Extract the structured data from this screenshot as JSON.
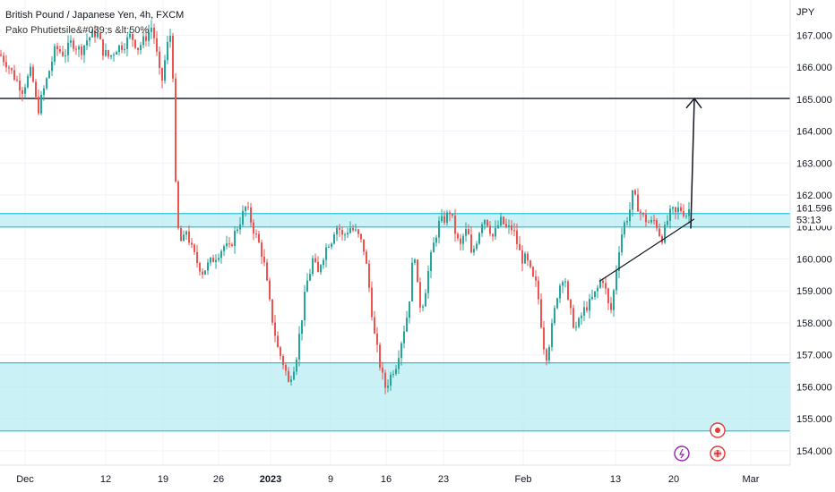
{
  "header": {
    "title": "British Pound / Japanese Yen, 4h, FXCM",
    "indicator": "Pako Phutietsile&#039;s &lt;50%"
  },
  "chart_data": {
    "type": "candlestick",
    "currency_label": "JPY",
    "y_ticks": [
      "167.000",
      "166.000",
      "165.000",
      "164.000",
      "163.000",
      "162.000",
      "161.000",
      "160.000",
      "159.000",
      "158.000",
      "157.000",
      "156.000",
      "155.000",
      "154.000"
    ],
    "y_tick_values": [
      167,
      166,
      165,
      164,
      163,
      162,
      161,
      160,
      159,
      158,
      157,
      156,
      155,
      154
    ],
    "ylim": [
      153.55,
      168.1
    ],
    "x_ticks": [
      {
        "label": "Dec",
        "bold": false
      },
      {
        "label": "12",
        "bold": false
      },
      {
        "label": "19",
        "bold": false
      },
      {
        "label": "26",
        "bold": false
      },
      {
        "label": "2023",
        "bold": true
      },
      {
        "label": "9",
        "bold": false
      },
      {
        "label": "16",
        "bold": false
      },
      {
        "label": "23",
        "bold": false
      },
      {
        "label": "Feb",
        "bold": false
      },
      {
        "label": "13",
        "bold": false
      },
      {
        "label": "20",
        "bold": false
      },
      {
        "label": "Mar",
        "bold": false
      }
    ],
    "last_price": "161.596",
    "countdown": "53:13",
    "target_level": 165.02,
    "resistance_zone": [
      161.0,
      161.42
    ],
    "demand_zone": [
      154.62,
      156.75
    ],
    "path_points": [
      [
        0,
        166.4
      ],
      [
        8,
        166.1
      ],
      [
        18,
        165.6
      ],
      [
        25,
        165.3
      ],
      [
        35,
        165.9
      ],
      [
        42,
        164.6
      ],
      [
        48,
        165.2
      ],
      [
        56,
        166.0
      ],
      [
        62,
        166.6
      ],
      [
        72,
        166.4
      ],
      [
        80,
        166.8
      ],
      [
        90,
        166.5
      ],
      [
        98,
        166.9
      ],
      [
        108,
        167.1
      ],
      [
        115,
        166.5
      ],
      [
        122,
        166.3
      ],
      [
        130,
        166.6
      ],
      [
        138,
        166.7
      ],
      [
        146,
        167.0
      ],
      [
        154,
        166.6
      ],
      [
        162,
        166.9
      ],
      [
        170,
        167.3
      ],
      [
        176,
        166.2
      ],
      [
        180,
        165.4
      ],
      [
        186,
        166.6
      ],
      [
        190,
        167.0
      ],
      [
        193,
        165.8
      ],
      [
        195,
        163.0
      ],
      [
        197,
        161.5
      ],
      [
        200,
        160.6
      ],
      [
        204,
        160.5
      ],
      [
        208,
        160.9
      ],
      [
        214,
        160.3
      ],
      [
        220,
        159.9
      ],
      [
        226,
        159.6
      ],
      [
        232,
        159.8
      ],
      [
        238,
        160.0
      ],
      [
        244,
        160.2
      ],
      [
        250,
        160.4
      ],
      [
        256,
        160.3
      ],
      [
        262,
        160.8
      ],
      [
        268,
        161.2
      ],
      [
        274,
        161.6
      ],
      [
        278,
        161.4
      ],
      [
        282,
        161.0
      ],
      [
        286,
        160.7
      ],
      [
        290,
        160.4
      ],
      [
        294,
        160.0
      ],
      [
        298,
        159.2
      ],
      [
        302,
        158.4
      ],
      [
        306,
        157.8
      ],
      [
        310,
        157.2
      ],
      [
        314,
        156.9
      ],
      [
        318,
        156.6
      ],
      [
        322,
        156.1
      ],
      [
        326,
        156.5
      ],
      [
        330,
        156.8
      ],
      [
        334,
        157.6
      ],
      [
        338,
        158.4
      ],
      [
        342,
        159.2
      ],
      [
        346,
        159.6
      ],
      [
        350,
        160.1
      ],
      [
        354,
        159.4
      ],
      [
        358,
        159.9
      ],
      [
        362,
        160.2
      ],
      [
        366,
        160.5
      ],
      [
        370,
        160.6
      ],
      [
        374,
        161.0
      ],
      [
        378,
        161.0
      ],
      [
        382,
        160.7
      ],
      [
        386,
        160.8
      ],
      [
        390,
        161.0
      ],
      [
        394,
        160.9
      ],
      [
        398,
        160.8
      ],
      [
        402,
        160.6
      ],
      [
        406,
        160.3
      ],
      [
        410,
        159.6
      ],
      [
        414,
        158.6
      ],
      [
        418,
        157.6
      ],
      [
        422,
        157.0
      ],
      [
        426,
        156.4
      ],
      [
        430,
        156.0
      ],
      [
        434,
        156.2
      ],
      [
        438,
        156.5
      ],
      [
        442,
        156.7
      ],
      [
        446,
        157.2
      ],
      [
        450,
        157.7
      ],
      [
        454,
        158.2
      ],
      [
        458,
        159.0
      ],
      [
        462,
        160.5
      ],
      [
        466,
        159.1
      ],
      [
        470,
        158.4
      ],
      [
        474,
        158.9
      ],
      [
        478,
        159.6
      ],
      [
        482,
        160.2
      ],
      [
        486,
        160.7
      ],
      [
        490,
        161.1
      ],
      [
        494,
        161.2
      ],
      [
        498,
        161.3
      ],
      [
        502,
        161.5
      ],
      [
        506,
        161.1
      ],
      [
        510,
        160.6
      ],
      [
        514,
        160.4
      ],
      [
        518,
        160.8
      ],
      [
        522,
        160.9
      ],
      [
        526,
        160.1
      ],
      [
        530,
        160.4
      ],
      [
        534,
        160.8
      ],
      [
        538,
        161.2
      ],
      [
        542,
        161.3
      ],
      [
        546,
        161.0
      ],
      [
        550,
        160.7
      ],
      [
        554,
        160.9
      ],
      [
        558,
        161.2
      ],
      [
        562,
        161.1
      ],
      [
        566,
        160.9
      ],
      [
        570,
        161.0
      ],
      [
        574,
        160.8
      ],
      [
        578,
        160.4
      ],
      [
        582,
        160.0
      ],
      [
        586,
        160.0
      ],
      [
        590,
        159.8
      ],
      [
        594,
        159.4
      ],
      [
        598,
        159.2
      ],
      [
        602,
        158.6
      ],
      [
        606,
        157.4
      ],
      [
        610,
        157.0
      ],
      [
        614,
        157.5
      ],
      [
        618,
        158.2
      ],
      [
        622,
        158.9
      ],
      [
        626,
        159.3
      ],
      [
        630,
        159.6
      ],
      [
        634,
        158.6
      ],
      [
        638,
        158.2
      ],
      [
        642,
        157.8
      ],
      [
        646,
        158.0
      ],
      [
        650,
        158.3
      ],
      [
        654,
        158.5
      ],
      [
        658,
        158.6
      ],
      [
        662,
        158.8
      ],
      [
        666,
        159.0
      ],
      [
        670,
        159.3
      ],
      [
        674,
        159.4
      ],
      [
        678,
        158.6
      ],
      [
        682,
        158.4
      ],
      [
        686,
        159.2
      ],
      [
        690,
        160.2
      ],
      [
        694,
        160.8
      ],
      [
        698,
        161.2
      ],
      [
        702,
        161.4
      ],
      [
        706,
        162.0
      ],
      [
        710,
        161.8
      ],
      [
        714,
        161.5
      ],
      [
        718,
        161.3
      ],
      [
        722,
        161.2
      ],
      [
        726,
        161.1
      ],
      [
        730,
        161.2
      ],
      [
        734,
        161.0
      ],
      [
        738,
        160.6
      ],
      [
        742,
        160.9
      ],
      [
        746,
        161.3
      ],
      [
        750,
        161.5
      ],
      [
        754,
        161.4
      ],
      [
        758,
        161.6
      ],
      [
        762,
        161.5
      ],
      [
        766,
        161.4
      ],
      [
        770,
        161.6
      ]
    ],
    "series": [
      {
        "name": "up-candle",
        "color": "#26a69a"
      },
      {
        "name": "down-candle",
        "color": "#ef5350"
      }
    ],
    "colors": {
      "zone_fill": "#b8ecf2",
      "zone_line": "#26c6da",
      "level_line": "#131722",
      "grid": "#f0f3fa"
    },
    "badges": [
      "lightning-icon",
      "flag-icon"
    ]
  }
}
